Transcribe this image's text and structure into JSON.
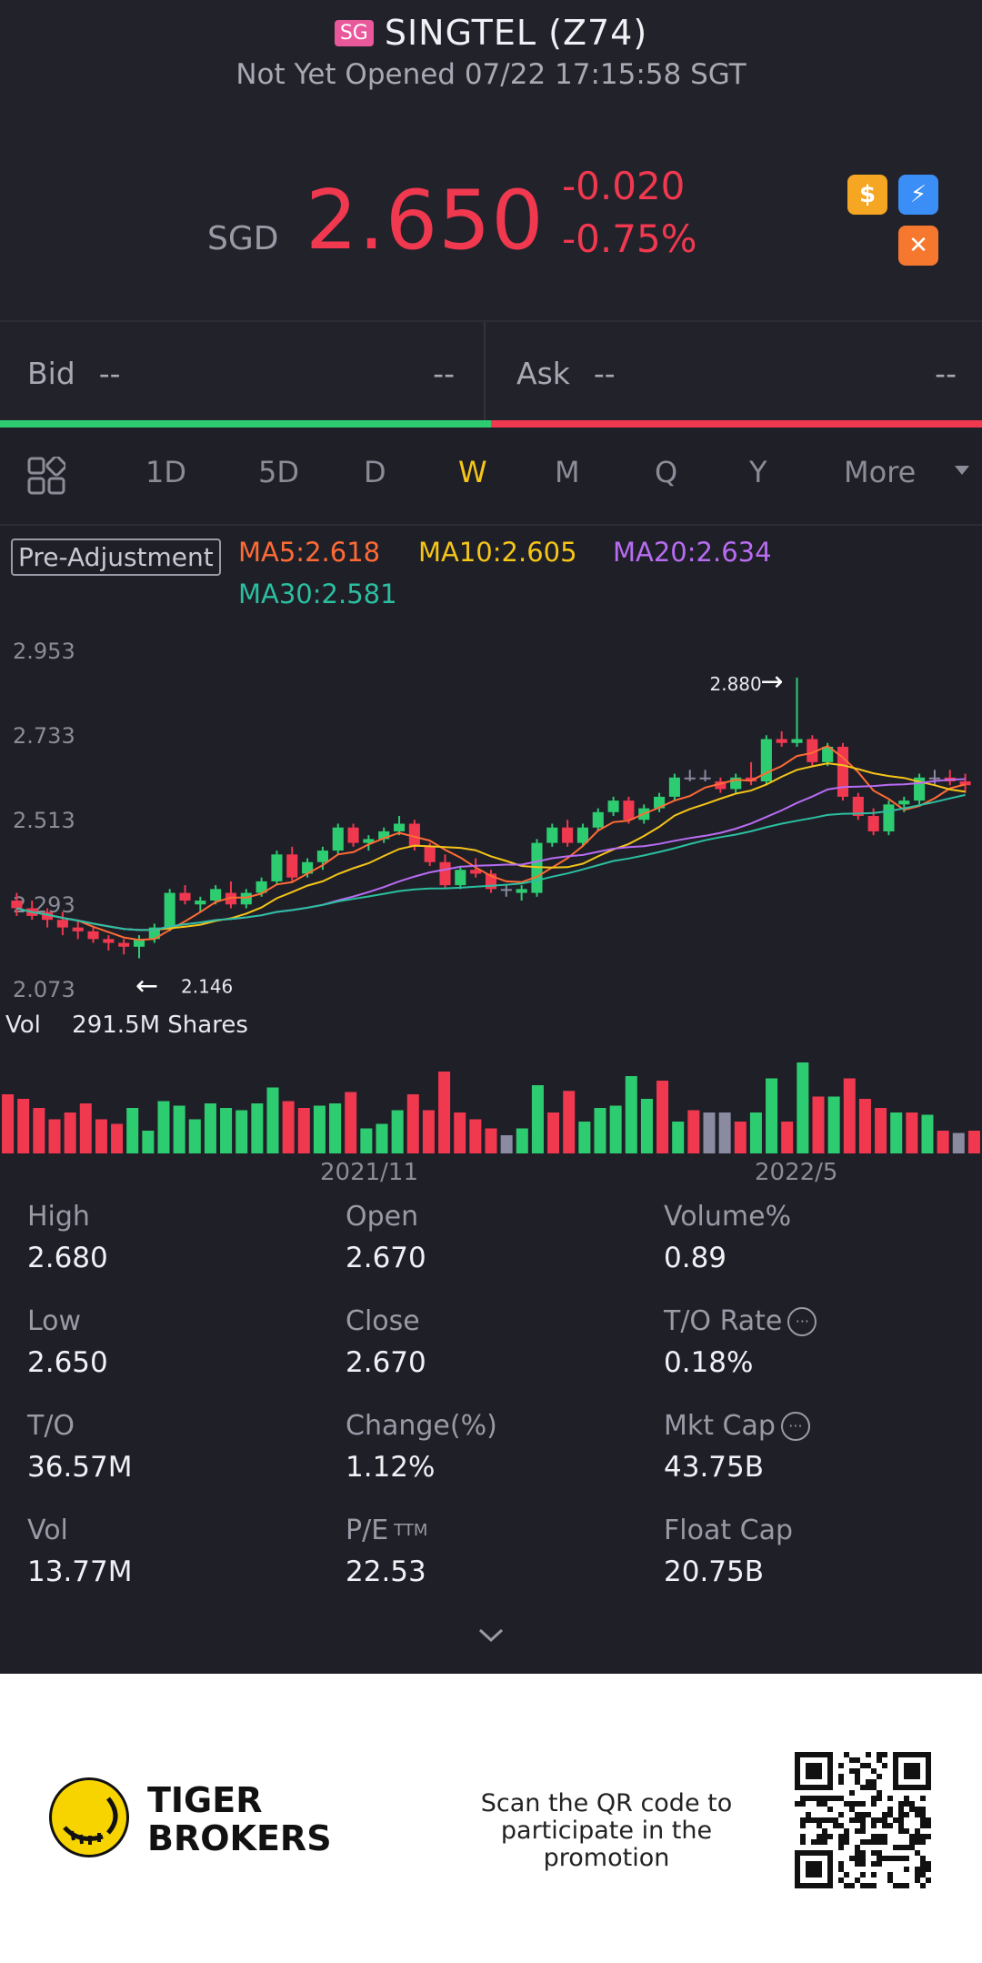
{
  "header": {
    "market_badge": "SG",
    "title": "SINGTEL (Z74)",
    "status": "Not Yet Opened 07/22 17:15:58 SGT",
    "currency": "SGD",
    "price": "2.650",
    "change": "-0.020",
    "change_pct": "-0.75%",
    "icons": [
      "dollar-icon",
      "bolt-icon",
      "cross-icon"
    ]
  },
  "quote": {
    "bid_label": "Bid",
    "bid_price": "--",
    "bid_size": "--",
    "ask_label": "Ask",
    "ask_price": "--",
    "ask_size": "--"
  },
  "tabs": {
    "items": [
      "1D",
      "5D",
      "D",
      "W",
      "M",
      "Q",
      "Y",
      "More"
    ],
    "active": "W"
  },
  "indicators": {
    "pre_adjustment": "Pre-Adjustment",
    "ma5": "MA5:2.618",
    "ma10": "MA10:2.605",
    "ma20": "MA20:2.634",
    "ma30": "MA30:2.581"
  },
  "colors": {
    "up": "#2ecc71",
    "down": "#f0384f",
    "flat": "#8a8aa0",
    "ma5": "#ff6b35",
    "ma10": "#f5c518",
    "ma20": "#b86cf2",
    "ma30": "#2bbfa0",
    "accent": "#f5c518"
  },
  "chart_data": {
    "type": "candlestick",
    "y_ticks": [
      "2.953",
      "2.733",
      "2.513",
      "2.293",
      "2.073"
    ],
    "ylim": [
      2.073,
      2.953
    ],
    "high_annotation": "2.880",
    "low_annotation": "2.146",
    "x_labels": [
      "2021/11",
      "2022/5"
    ],
    "volume_label": "Vol",
    "volume_value": "291.5M Shares",
    "candles": [
      [
        2.3,
        2.32,
        2.26,
        2.28
      ],
      [
        2.28,
        2.3,
        2.25,
        2.26
      ],
      [
        2.27,
        2.28,
        2.23,
        2.25
      ],
      [
        2.25,
        2.27,
        2.21,
        2.23
      ],
      [
        2.23,
        2.25,
        2.2,
        2.22
      ],
      [
        2.22,
        2.23,
        2.19,
        2.2
      ],
      [
        2.2,
        2.21,
        2.17,
        2.19
      ],
      [
        2.19,
        2.2,
        2.16,
        2.18
      ],
      [
        2.18,
        2.21,
        2.15,
        2.2
      ],
      [
        2.2,
        2.24,
        2.19,
        2.23
      ],
      [
        2.23,
        2.33,
        2.22,
        2.32
      ],
      [
        2.32,
        2.34,
        2.29,
        2.3
      ],
      [
        2.29,
        2.31,
        2.27,
        2.3
      ],
      [
        2.3,
        2.34,
        2.29,
        2.33
      ],
      [
        2.32,
        2.35,
        2.28,
        2.29
      ],
      [
        2.29,
        2.33,
        2.28,
        2.32
      ],
      [
        2.32,
        2.36,
        2.31,
        2.35
      ],
      [
        2.35,
        2.43,
        2.34,
        2.42
      ],
      [
        2.42,
        2.44,
        2.35,
        2.36
      ],
      [
        2.37,
        2.41,
        2.36,
        2.4
      ],
      [
        2.4,
        2.44,
        2.38,
        2.43
      ],
      [
        2.43,
        2.5,
        2.42,
        2.49
      ],
      [
        2.49,
        2.5,
        2.44,
        2.45
      ],
      [
        2.45,
        2.47,
        2.43,
        2.46
      ],
      [
        2.46,
        2.49,
        2.45,
        2.48
      ],
      [
        2.48,
        2.52,
        2.47,
        2.5
      ],
      [
        2.5,
        2.51,
        2.43,
        2.44
      ],
      [
        2.44,
        2.45,
        2.39,
        2.4
      ],
      [
        2.4,
        2.42,
        2.33,
        2.34
      ],
      [
        2.34,
        2.39,
        2.33,
        2.38
      ],
      [
        2.38,
        2.41,
        2.36,
        2.37
      ],
      [
        2.37,
        2.38,
        2.32,
        2.33
      ],
      [
        2.33,
        2.34,
        2.31,
        2.33
      ],
      [
        2.32,
        2.34,
        2.3,
        2.33
      ],
      [
        2.32,
        2.46,
        2.31,
        2.45
      ],
      [
        2.45,
        2.5,
        2.44,
        2.49
      ],
      [
        2.49,
        2.51,
        2.44,
        2.45
      ],
      [
        2.45,
        2.5,
        2.44,
        2.49
      ],
      [
        2.49,
        2.54,
        2.48,
        2.53
      ],
      [
        2.53,
        2.57,
        2.52,
        2.56
      ],
      [
        2.56,
        2.57,
        2.5,
        2.51
      ],
      [
        2.51,
        2.55,
        2.5,
        2.54
      ],
      [
        2.54,
        2.58,
        2.53,
        2.57
      ],
      [
        2.57,
        2.63,
        2.56,
        2.62
      ],
      [
        2.62,
        2.64,
        2.61,
        2.62
      ],
      [
        2.62,
        2.64,
        2.61,
        2.62
      ],
      [
        2.61,
        2.62,
        2.58,
        2.59
      ],
      [
        2.59,
        2.63,
        2.58,
        2.62
      ],
      [
        2.62,
        2.66,
        2.6,
        2.61
      ],
      [
        2.61,
        2.73,
        2.6,
        2.72
      ],
      [
        2.72,
        2.74,
        2.7,
        2.71
      ],
      [
        2.71,
        2.88,
        2.7,
        2.72
      ],
      [
        2.72,
        2.73,
        2.65,
        2.66
      ],
      [
        2.66,
        2.71,
        2.65,
        2.7
      ],
      [
        2.7,
        2.71,
        2.56,
        2.57
      ],
      [
        2.57,
        2.58,
        2.51,
        2.52
      ],
      [
        2.52,
        2.54,
        2.47,
        2.48
      ],
      [
        2.48,
        2.56,
        2.47,
        2.55
      ],
      [
        2.55,
        2.57,
        2.53,
        2.56
      ],
      [
        2.56,
        2.63,
        2.55,
        2.62
      ],
      [
        2.62,
        2.64,
        2.6,
        2.62
      ],
      [
        2.62,
        2.64,
        2.6,
        2.61
      ],
      [
        2.61,
        2.63,
        2.58,
        2.6
      ]
    ],
    "volume": [
      [
        52,
        "down"
      ],
      [
        48,
        "down"
      ],
      [
        40,
        "down"
      ],
      [
        30,
        "down"
      ],
      [
        36,
        "down"
      ],
      [
        44,
        "down"
      ],
      [
        30,
        "down"
      ],
      [
        26,
        "down"
      ],
      [
        40,
        "up"
      ],
      [
        20,
        "up"
      ],
      [
        46,
        "up"
      ],
      [
        42,
        "up"
      ],
      [
        30,
        "up"
      ],
      [
        44,
        "up"
      ],
      [
        40,
        "up"
      ],
      [
        38,
        "up"
      ],
      [
        44,
        "up"
      ],
      [
        58,
        "up"
      ],
      [
        46,
        "down"
      ],
      [
        40,
        "down"
      ],
      [
        42,
        "up"
      ],
      [
        44,
        "up"
      ],
      [
        54,
        "down"
      ],
      [
        22,
        "up"
      ],
      [
        26,
        "up"
      ],
      [
        38,
        "up"
      ],
      [
        52,
        "down"
      ],
      [
        38,
        "down"
      ],
      [
        72,
        "down"
      ],
      [
        36,
        "down"
      ],
      [
        30,
        "down"
      ],
      [
        22,
        "down"
      ],
      [
        16,
        "flat"
      ],
      [
        22,
        "up"
      ],
      [
        60,
        "up"
      ],
      [
        36,
        "down"
      ],
      [
        55,
        "down"
      ],
      [
        28,
        "up"
      ],
      [
        40,
        "up"
      ],
      [
        42,
        "up"
      ],
      [
        68,
        "up"
      ],
      [
        48,
        "up"
      ],
      [
        64,
        "down"
      ],
      [
        28,
        "up"
      ],
      [
        38,
        "down"
      ],
      [
        36,
        "flat"
      ],
      [
        36,
        "flat"
      ],
      [
        28,
        "down"
      ],
      [
        36,
        "up"
      ],
      [
        66,
        "up"
      ],
      [
        28,
        "down"
      ],
      [
        80,
        "up"
      ],
      [
        50,
        "down"
      ],
      [
        50,
        "up"
      ],
      [
        66,
        "down"
      ],
      [
        48,
        "down"
      ],
      [
        40,
        "down"
      ],
      [
        36,
        "up"
      ],
      [
        36,
        "down"
      ],
      [
        34,
        "up"
      ],
      [
        20,
        "down"
      ],
      [
        18,
        "flat"
      ],
      [
        20,
        "down"
      ]
    ]
  },
  "stats": [
    {
      "label": "High",
      "value": "2.680"
    },
    {
      "label": "Open",
      "value": "2.670"
    },
    {
      "label": "Volume%",
      "value": "0.89"
    },
    {
      "label": "Low",
      "value": "2.650"
    },
    {
      "label": "Close",
      "value": "2.670"
    },
    {
      "label": "T/O Rate",
      "value": "0.18%"
    },
    {
      "label": "T/O",
      "value": "36.57M"
    },
    {
      "label": "Change(%)",
      "value": "1.12%"
    },
    {
      "label": "Mkt Cap",
      "value": "43.75B"
    },
    {
      "label": "Vol",
      "value": "13.77M"
    },
    {
      "label": "P/E",
      "label_sup": "TTM",
      "value": "22.53"
    },
    {
      "label": "Float Cap",
      "value": "20.75B"
    }
  ],
  "footer": {
    "brand_line1": "TIGER",
    "brand_line2": "BROKERS",
    "promo_line1": "Scan the QR code to",
    "promo_line2": "participate in the promotion"
  }
}
